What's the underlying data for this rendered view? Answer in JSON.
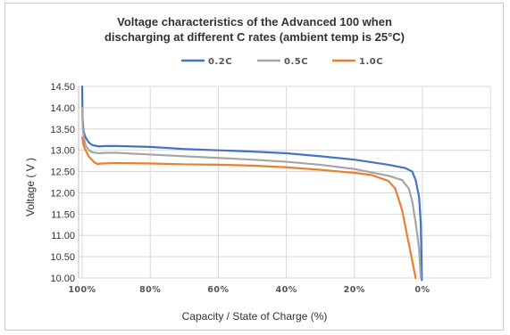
{
  "chart_data": {
    "type": "line",
    "title_line1": "Voltage characteristics of the Advanced 100 when",
    "title_line2": "discharging at different C rates (ambient temp is 25°C)",
    "xlabel": "Capacity / State of Charge (%)",
    "ylabel": "Voltage ( V )",
    "xlim": [
      100,
      0
    ],
    "ylim": [
      10.0,
      14.5
    ],
    "x_ticks": [
      {
        "value": 100,
        "label": "100%"
      },
      {
        "value": 80,
        "label": "80%"
      },
      {
        "value": 60,
        "label": "60%"
      },
      {
        "value": 40,
        "label": "40%"
      },
      {
        "value": 20,
        "label": "20%"
      },
      {
        "value": 0,
        "label": "0%"
      }
    ],
    "y_ticks": [
      "14.50",
      "14.00",
      "13.50",
      "13.00",
      "12.50",
      "12.00",
      "11.50",
      "11.00",
      "10.50",
      "10.00"
    ],
    "grid": true,
    "legend_position": "top",
    "series": [
      {
        "name": "0.2C",
        "color": "#4472c4",
        "points": [
          [
            100,
            14.5
          ],
          [
            99.9,
            13.8
          ],
          [
            99.6,
            13.45
          ],
          [
            99,
            13.3
          ],
          [
            98,
            13.18
          ],
          [
            97,
            13.12
          ],
          [
            95,
            13.09
          ],
          [
            93,
            13.1
          ],
          [
            90,
            13.1
          ],
          [
            80,
            13.08
          ],
          [
            70,
            13.03
          ],
          [
            60,
            13.0
          ],
          [
            50,
            12.97
          ],
          [
            40,
            12.93
          ],
          [
            30,
            12.86
          ],
          [
            20,
            12.78
          ],
          [
            10,
            12.66
          ],
          [
            5,
            12.58
          ],
          [
            3,
            12.5
          ],
          [
            2,
            12.3
          ],
          [
            1,
            11.9
          ],
          [
            0.5,
            11.3
          ],
          [
            0.3,
            10.5
          ],
          [
            0.2,
            9.95
          ]
        ]
      },
      {
        "name": "0.5C",
        "color": "#a5a5a5",
        "points": [
          [
            100,
            14.0
          ],
          [
            99.8,
            13.5
          ],
          [
            99.4,
            13.25
          ],
          [
            99,
            13.12
          ],
          [
            98,
            13.0
          ],
          [
            97,
            12.95
          ],
          [
            95,
            12.93
          ],
          [
            93,
            12.94
          ],
          [
            90,
            12.94
          ],
          [
            80,
            12.9
          ],
          [
            70,
            12.86
          ],
          [
            60,
            12.82
          ],
          [
            50,
            12.78
          ],
          [
            40,
            12.73
          ],
          [
            30,
            12.66
          ],
          [
            20,
            12.56
          ],
          [
            10,
            12.4
          ],
          [
            6,
            12.3
          ],
          [
            4,
            12.1
          ],
          [
            3,
            11.8
          ],
          [
            2,
            11.3
          ],
          [
            1,
            10.7
          ],
          [
            0.5,
            10.0
          ]
        ]
      },
      {
        "name": "1.0C",
        "color": "#ed7d31",
        "points": [
          [
            100,
            13.3
          ],
          [
            99.5,
            13.1
          ],
          [
            99,
            13.0
          ],
          [
            98,
            12.85
          ],
          [
            96.5,
            12.72
          ],
          [
            95.5,
            12.68
          ],
          [
            94,
            12.69
          ],
          [
            90,
            12.7
          ],
          [
            80,
            12.69
          ],
          [
            70,
            12.67
          ],
          [
            60,
            12.66
          ],
          [
            50,
            12.64
          ],
          [
            40,
            12.6
          ],
          [
            30,
            12.54
          ],
          [
            20,
            12.47
          ],
          [
            15,
            12.42
          ],
          [
            10,
            12.28
          ],
          [
            8,
            12.1
          ],
          [
            6,
            11.6
          ],
          [
            5,
            11.2
          ],
          [
            4,
            10.8
          ],
          [
            3,
            10.4
          ],
          [
            2,
            10.0
          ]
        ]
      }
    ]
  }
}
